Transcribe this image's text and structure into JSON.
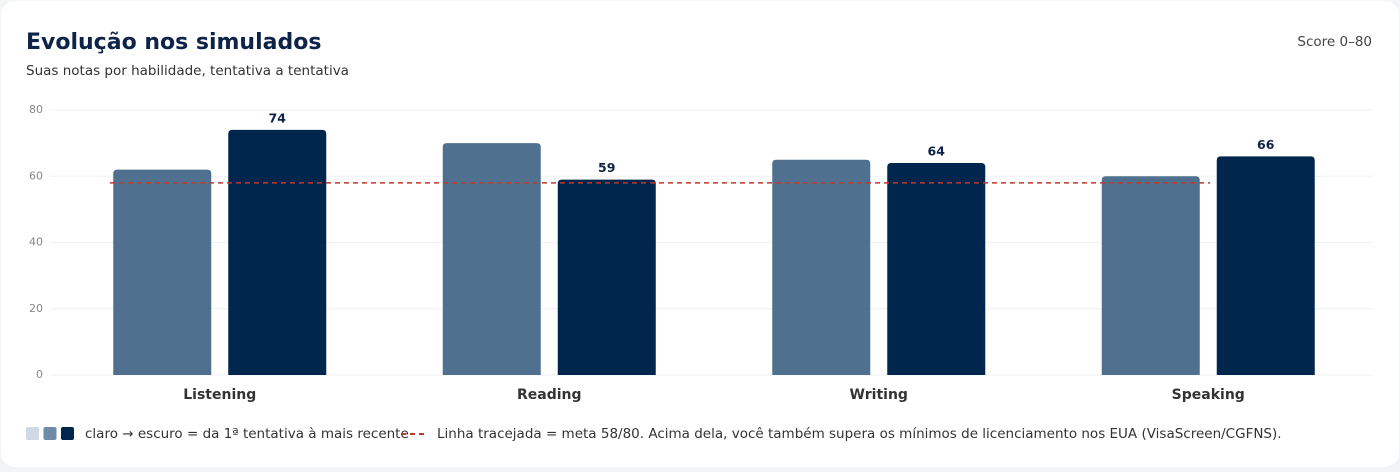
{
  "chart_data": {
    "type": "bar",
    "title": "Evolução nos simulados",
    "subtitle": "Suas notas por habilidade, tentativa a tentativa",
    "scale_note": "Score 0–80",
    "categories": [
      "Listening",
      "Reading",
      "Writing",
      "Speaking"
    ],
    "series": [
      {
        "color": "#4f718f",
        "values": [
          62,
          70,
          65,
          60
        ]
      },
      {
        "color": "#00264d",
        "values": [
          74,
          59,
          64,
          66
        ],
        "show_labels": true
      }
    ],
    "ylim": [
      0,
      80
    ],
    "yticks": [
      0,
      20,
      40,
      60,
      80
    ],
    "grid": true,
    "target_line": {
      "value": 58,
      "color": "#c0392b"
    },
    "legend_swatches": [
      "#cfd8e3",
      "#6f8ba7",
      "#00264d"
    ],
    "legend_text": "claro → escuro = da 1ª tentativa à mais recente",
    "target_note": "Linha tracejada = meta 58/80. Acima dela, você também supera os mínimos de licenciamento nos EUA (VisaScreen/CGFNS)."
  }
}
